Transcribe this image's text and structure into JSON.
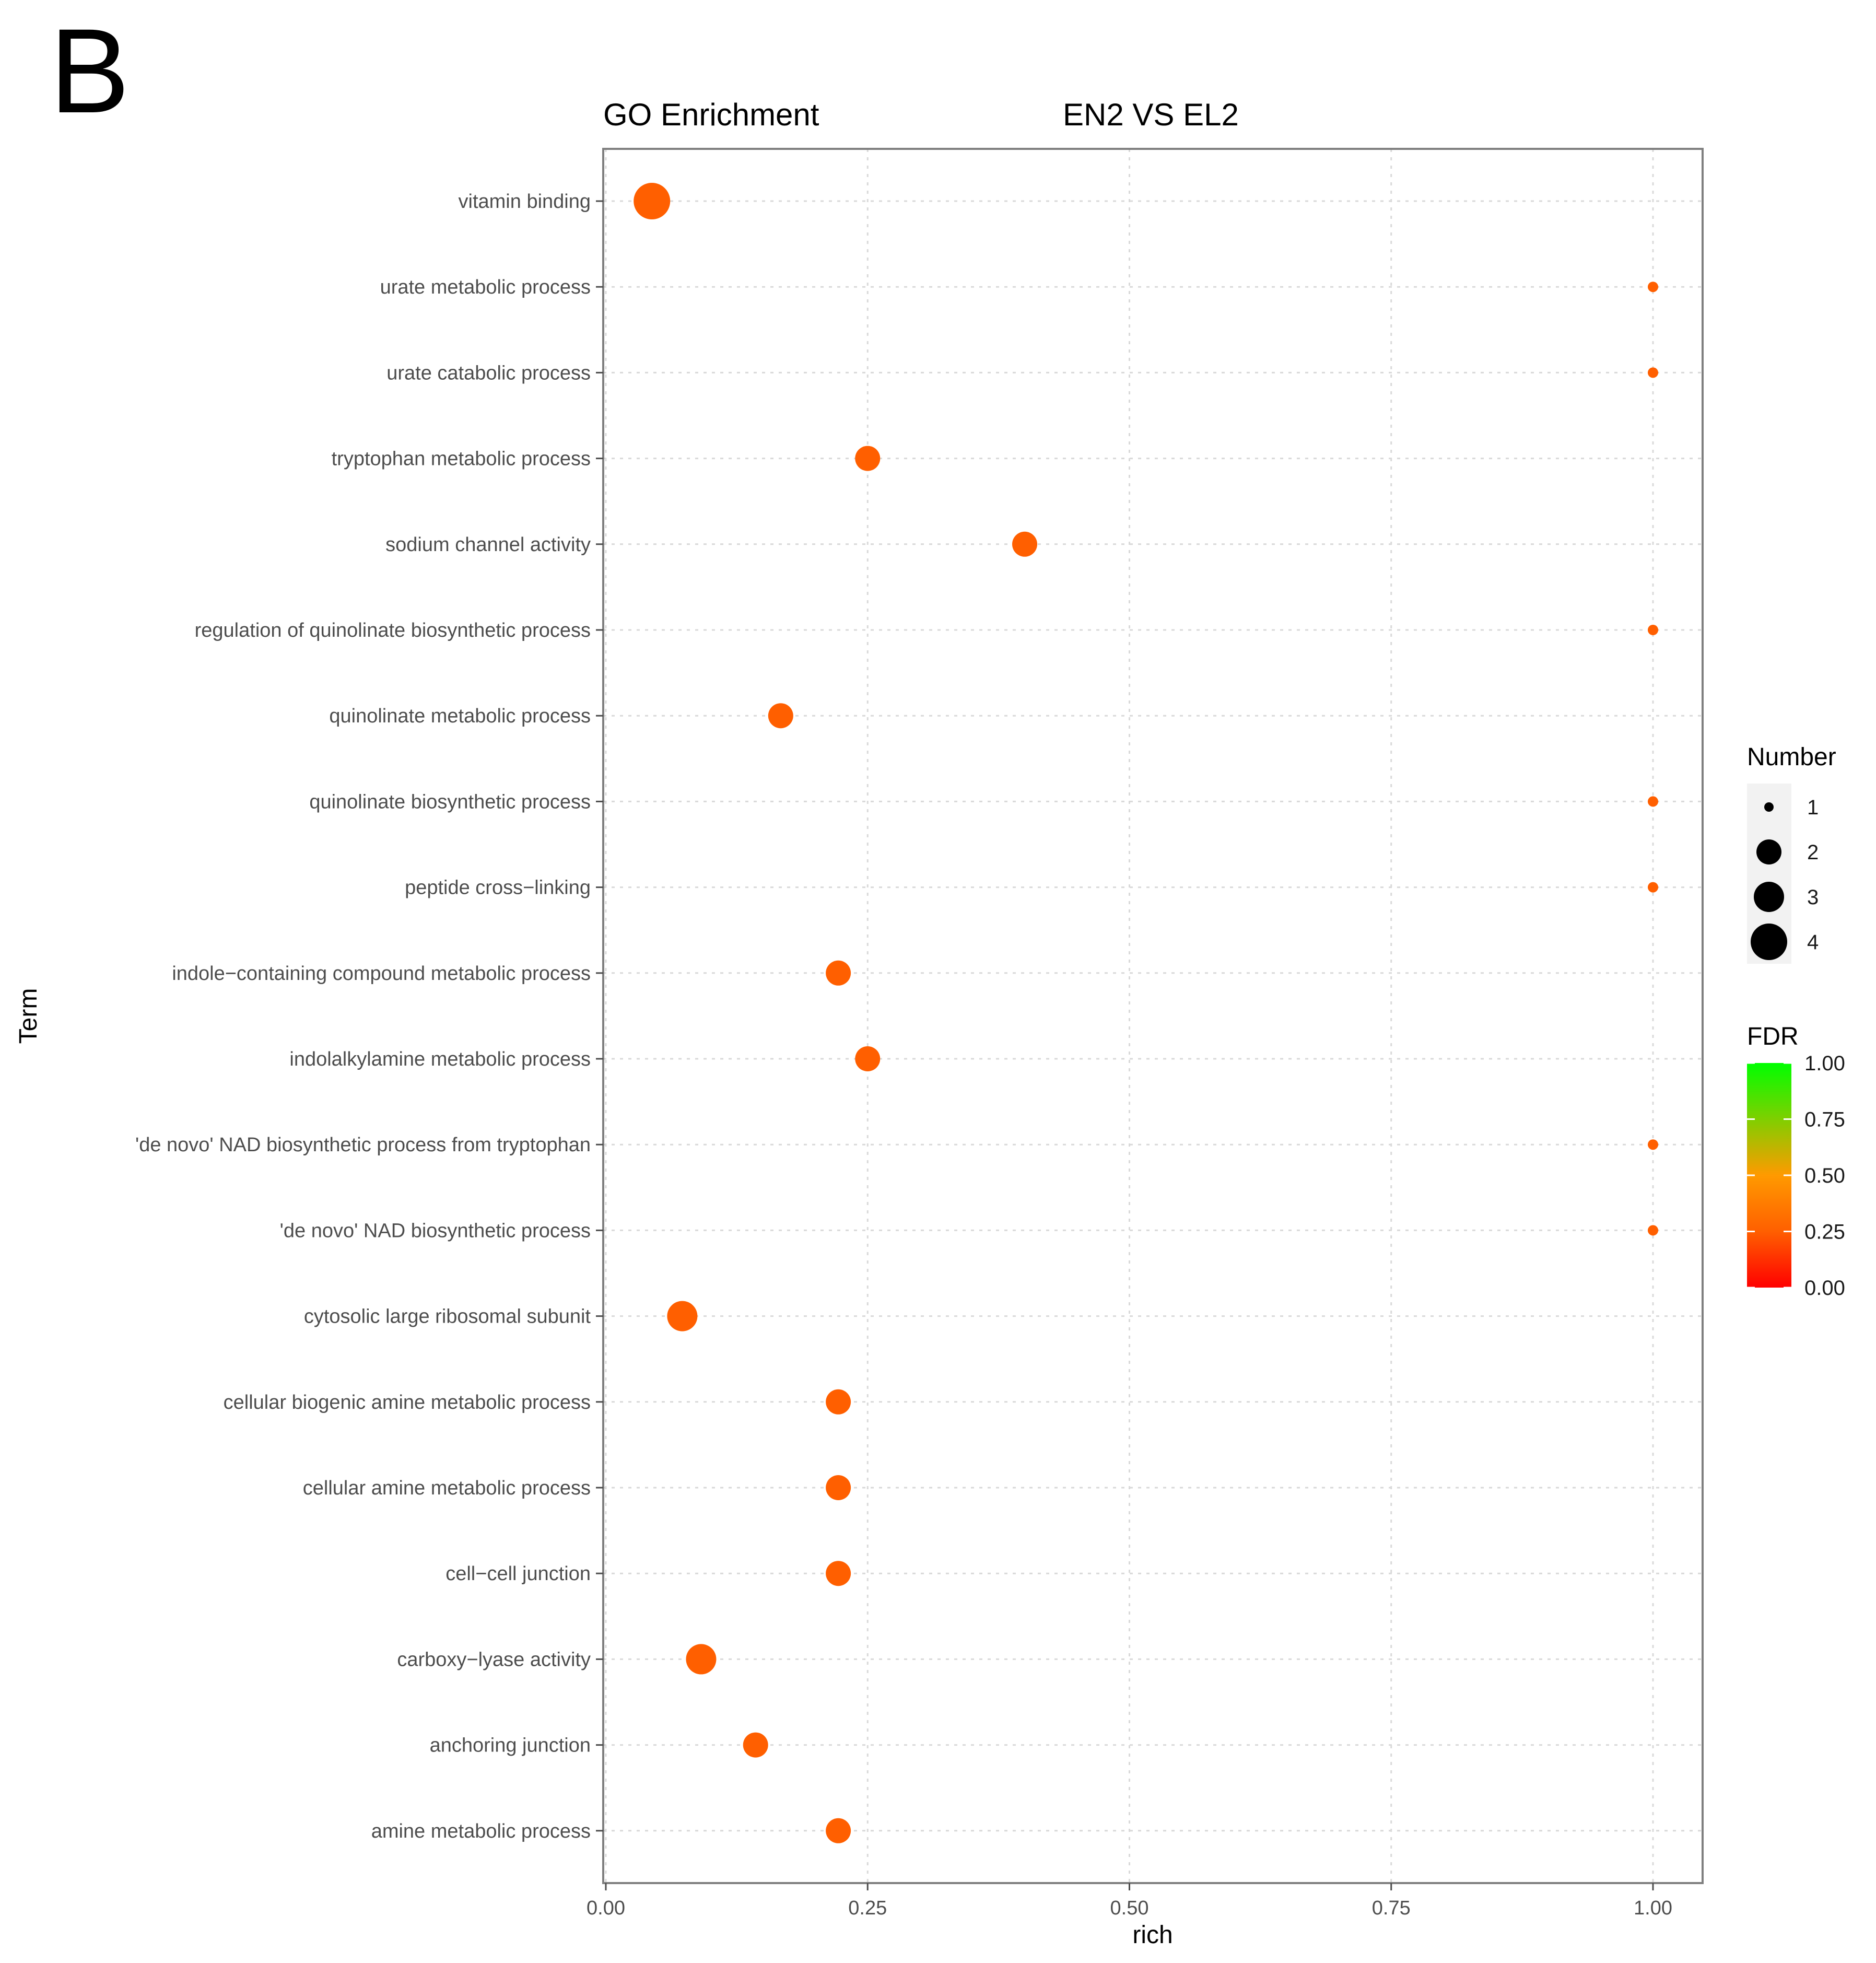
{
  "panel_label": "B",
  "chart_data": {
    "type": "scatter",
    "title": "GO Enrichment",
    "subtitle": "EN2 VS EL2",
    "xlabel": "rich",
    "ylabel": "Term",
    "xlim": [
      0,
      1.05
    ],
    "xticks": [
      "0.00",
      "0.25",
      "0.50",
      "0.75",
      "1.00"
    ],
    "grid": true,
    "categories": [
      "vitamin binding",
      "urate metabolic process",
      "urate catabolic process",
      "tryptophan metabolic process",
      "sodium channel activity",
      "regulation of quinolinate biosynthetic process",
      "quinolinate metabolic process",
      "quinolinate biosynthetic process",
      "peptide cross−linking",
      "indole−containing compound metabolic process",
      "indolalkylamine metabolic process",
      "'de novo' NAD biosynthetic process from tryptophan",
      "'de novo' NAD biosynthetic process",
      "cytosolic large ribosomal subunit",
      "cellular biogenic amine metabolic process",
      "cellular amine metabolic process",
      "cell−cell junction",
      "carboxy−lyase activity",
      "anchoring junction",
      "amine metabolic process"
    ],
    "points": [
      {
        "term": "vitamin binding",
        "rich": 0.044,
        "number": 4,
        "fdr": 0.25
      },
      {
        "term": "urate metabolic process",
        "rich": 1.0,
        "number": 1,
        "fdr": 0.25
      },
      {
        "term": "urate catabolic process",
        "rich": 1.0,
        "number": 1,
        "fdr": 0.25
      },
      {
        "term": "tryptophan metabolic process",
        "rich": 0.25,
        "number": 2,
        "fdr": 0.25
      },
      {
        "term": "sodium channel activity",
        "rich": 0.4,
        "number": 2,
        "fdr": 0.25
      },
      {
        "term": "regulation of quinolinate biosynthetic process",
        "rich": 1.0,
        "number": 1,
        "fdr": 0.25
      },
      {
        "term": "quinolinate metabolic process",
        "rich": 0.167,
        "number": 2,
        "fdr": 0.25
      },
      {
        "term": "quinolinate biosynthetic process",
        "rich": 1.0,
        "number": 1,
        "fdr": 0.25
      },
      {
        "term": "peptide cross−linking",
        "rich": 1.0,
        "number": 1,
        "fdr": 0.25
      },
      {
        "term": "indole−containing compound metabolic process",
        "rich": 0.222,
        "number": 2,
        "fdr": 0.25
      },
      {
        "term": "indolalkylamine metabolic process",
        "rich": 0.25,
        "number": 2,
        "fdr": 0.25
      },
      {
        "term": "'de novo' NAD biosynthetic process from tryptophan",
        "rich": 1.0,
        "number": 1,
        "fdr": 0.25
      },
      {
        "term": "'de novo' NAD biosynthetic process",
        "rich": 1.0,
        "number": 1,
        "fdr": 0.25
      },
      {
        "term": "cytosolic large ribosomal subunit",
        "rich": 0.073,
        "number": 3,
        "fdr": 0.25
      },
      {
        "term": "cellular biogenic amine metabolic process",
        "rich": 0.222,
        "number": 2,
        "fdr": 0.25
      },
      {
        "term": "cellular amine metabolic process",
        "rich": 0.222,
        "number": 2,
        "fdr": 0.25
      },
      {
        "term": "cell−cell junction",
        "rich": 0.222,
        "number": 2,
        "fdr": 0.25
      },
      {
        "term": "carboxy−lyase activity",
        "rich": 0.091,
        "number": 3,
        "fdr": 0.25
      },
      {
        "term": "anchoring junction",
        "rich": 0.143,
        "number": 2,
        "fdr": 0.25
      },
      {
        "term": "amine metabolic process",
        "rich": 0.222,
        "number": 2,
        "fdr": 0.25
      }
    ],
    "size_legend": {
      "title": "Number",
      "labels": [
        "1",
        "2",
        "3",
        "4"
      ],
      "values": [
        1,
        2,
        3,
        4
      ]
    },
    "color_legend": {
      "title": "FDR",
      "labels": [
        "1.00",
        "0.75",
        "0.50",
        "0.25",
        "0.00"
      ],
      "low_color": "#ff0000",
      "mid_color": "#ff7f00",
      "high_color": "#00ff00",
      "point_color": "#ff5f00"
    }
  }
}
